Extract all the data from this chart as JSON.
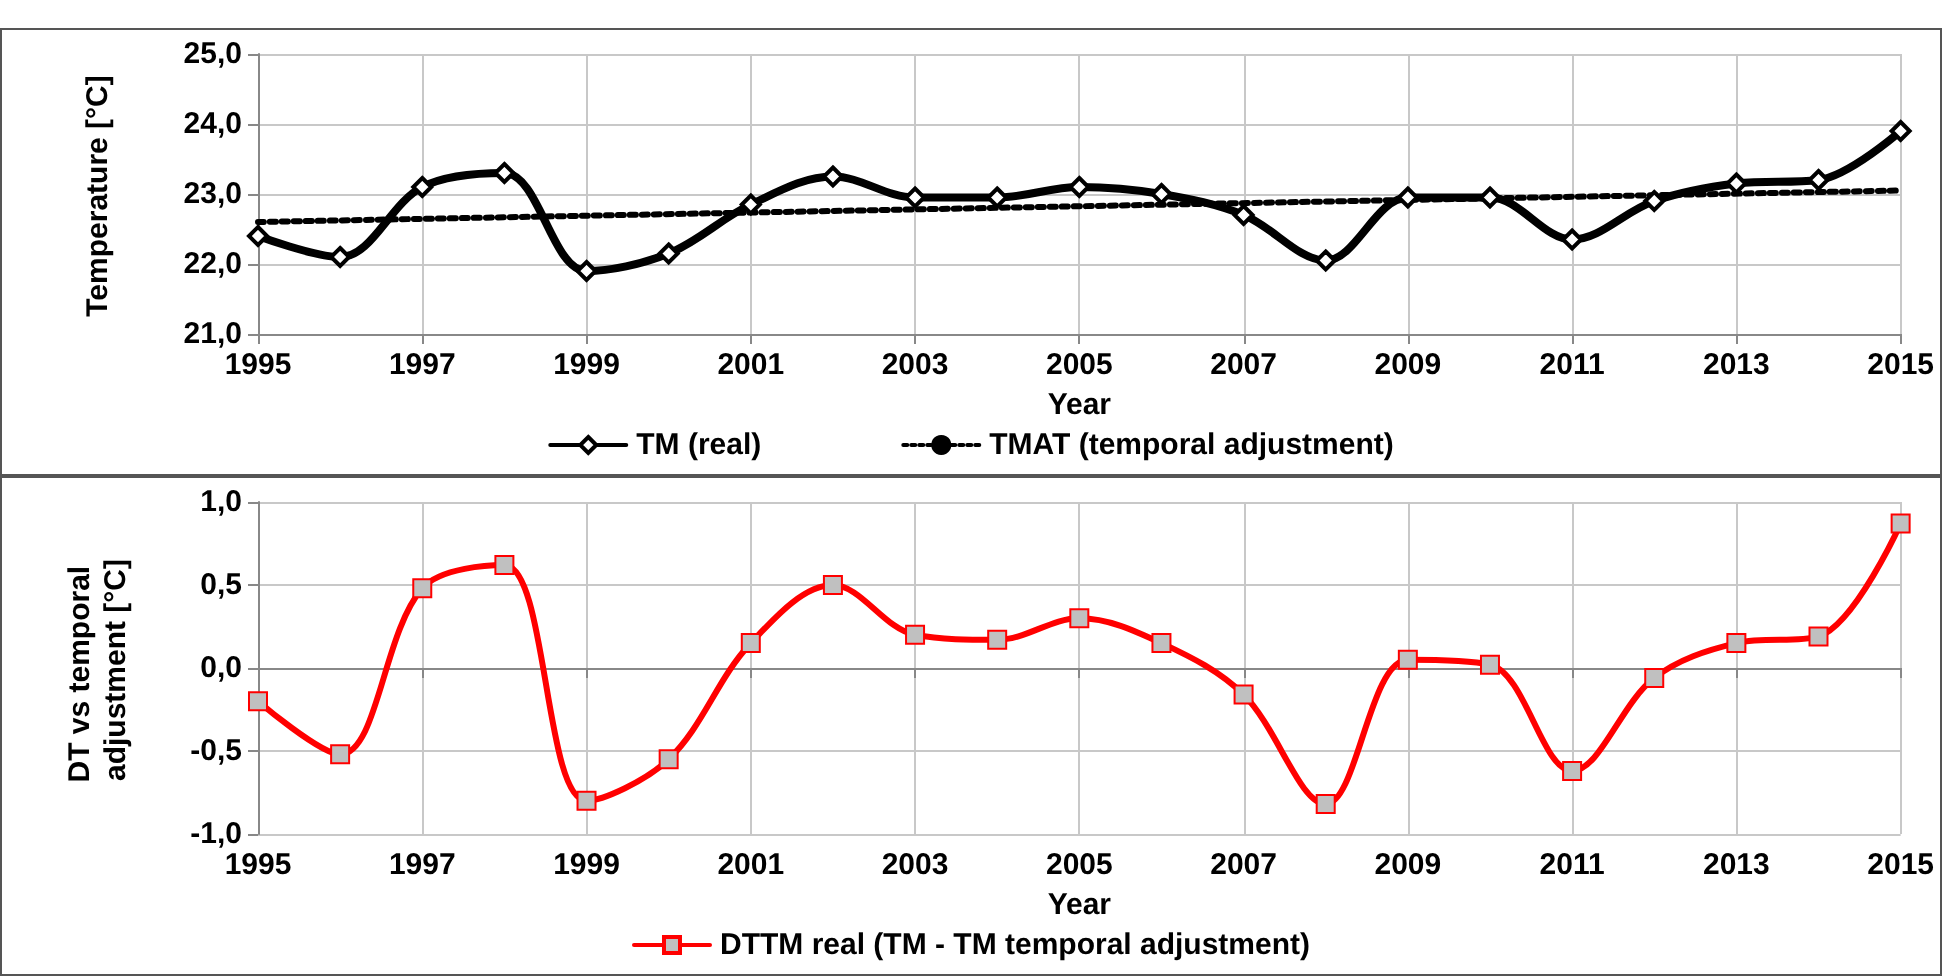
{
  "chart_data": [
    {
      "type": "line",
      "xlabel": "Year",
      "ylabel": "Temperature [°C]",
      "x": [
        1995,
        1996,
        1997,
        1998,
        1999,
        2000,
        2001,
        2002,
        2003,
        2004,
        2005,
        2006,
        2007,
        2008,
        2009,
        2010,
        2011,
        2012,
        2013,
        2014,
        2015
      ],
      "xlim": [
        1995,
        2015
      ],
      "xticks": [
        1995,
        1997,
        1999,
        2001,
        2003,
        2005,
        2007,
        2009,
        2011,
        2013,
        2015
      ],
      "ylim": [
        21,
        25
      ],
      "yticks": [
        {
          "value": 21,
          "label": "21,0"
        },
        {
          "value": 22,
          "label": "22,0"
        },
        {
          "value": 23,
          "label": "23,0"
        },
        {
          "value": 24,
          "label": "24,0"
        },
        {
          "value": 25,
          "label": "25,0"
        }
      ],
      "grid": true,
      "legend": "bottom",
      "series": [
        {
          "name": "TM (real)",
          "color": "#000000",
          "marker": "diamond",
          "line_style": "solid",
          "values": [
            22.4,
            22.1,
            23.1,
            23.3,
            21.9,
            22.15,
            22.85,
            23.25,
            22.95,
            22.95,
            23.1,
            23.0,
            22.7,
            22.05,
            22.95,
            22.95,
            22.35,
            22.9,
            23.15,
            23.2,
            23.9
          ]
        },
        {
          "name": "TMAT (temporal adjustment)",
          "color": "#000000",
          "marker": "none",
          "line_style": "dotted",
          "x": [
            1995,
            2015
          ],
          "values": [
            22.6,
            23.05
          ]
        }
      ]
    },
    {
      "type": "line",
      "xlabel": "Year",
      "ylabel": "DT vs temporal adjustment [°C]",
      "x": [
        1995,
        1996,
        1997,
        1998,
        1999,
        2000,
        2001,
        2002,
        2003,
        2004,
        2005,
        2006,
        2007,
        2008,
        2009,
        2010,
        2011,
        2012,
        2013,
        2014,
        2015
      ],
      "xlim": [
        1995,
        2015
      ],
      "xticks": [
        1995,
        1997,
        1999,
        2001,
        2003,
        2005,
        2007,
        2009,
        2011,
        2013,
        2015
      ],
      "ylim": [
        -1,
        1
      ],
      "yticks": [
        {
          "value": -1,
          "label": "-1,0"
        },
        {
          "value": -0.5,
          "label": "-0,5"
        },
        {
          "value": 0,
          "label": "0,0"
        },
        {
          "value": 0.5,
          "label": "0,5"
        },
        {
          "value": 1,
          "label": "1,0"
        }
      ],
      "grid": true,
      "legend": "bottom",
      "series": [
        {
          "name": "DTTM real (TM - TM temporal adjustment)",
          "color": "#ff0000",
          "marker": "square",
          "line_style": "solid",
          "values": [
            -0.2,
            -0.52,
            0.48,
            0.62,
            -0.8,
            -0.55,
            0.15,
            0.5,
            0.2,
            0.17,
            0.3,
            0.15,
            -0.16,
            -0.82,
            0.05,
            0.02,
            -0.62,
            -0.06,
            0.15,
            0.19,
            0.87
          ]
        }
      ]
    }
  ]
}
